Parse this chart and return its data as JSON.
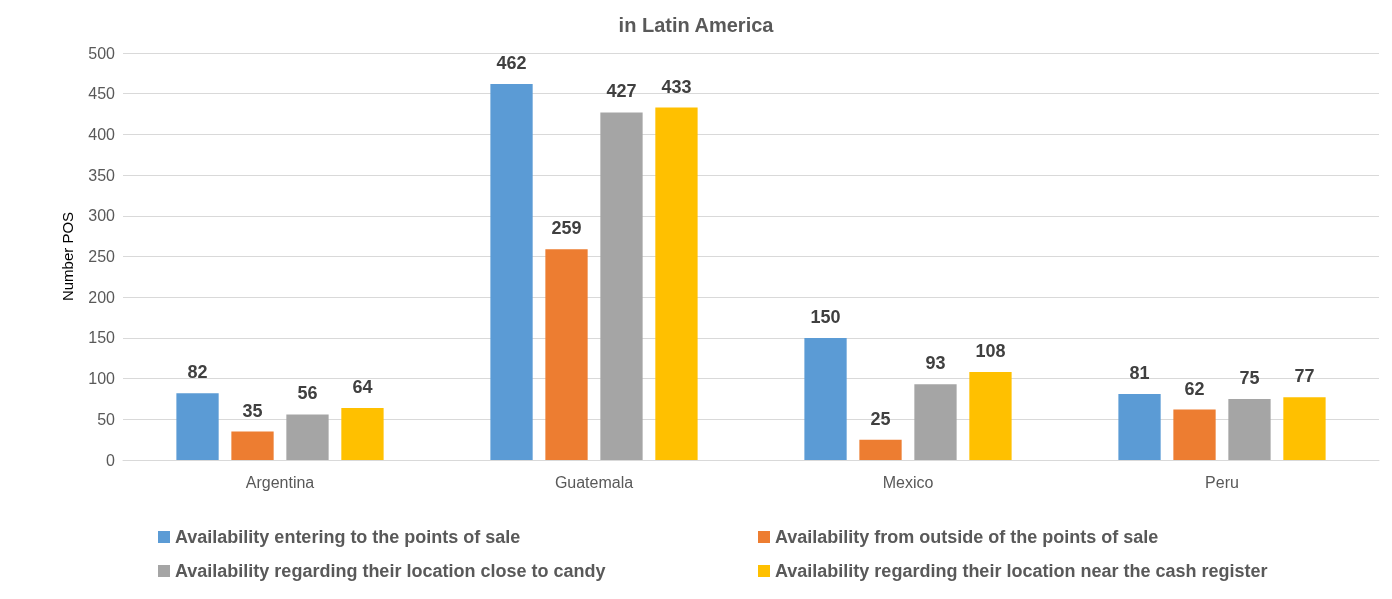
{
  "chart_data": {
    "type": "bar",
    "title": "in Latin America",
    "ylabel": "Number POS",
    "categories": [
      "Argentina",
      "Guatemala",
      "Mexico",
      "Peru"
    ],
    "series": [
      {
        "name": "Availability entering to the points of sale",
        "color": "#5b9bd5",
        "values": [
          82,
          462,
          150,
          81
        ]
      },
      {
        "name": "Availability from outside of the points of sale",
        "color": "#ed7d31",
        "values": [
          35,
          259,
          25,
          62
        ]
      },
      {
        "name": "Availability regarding their location close to candy",
        "color": "#a5a5a5",
        "values": [
          56,
          427,
          93,
          75
        ]
      },
      {
        "name": "Availability regarding their location near the cash register",
        "color": "#ffc000",
        "values": [
          64,
          433,
          108,
          77
        ]
      }
    ],
    "ylim": [
      0,
      500
    ],
    "yticks": [
      0,
      50,
      100,
      150,
      200,
      250,
      300,
      350,
      400,
      450,
      500
    ],
    "grid": "y",
    "legend": "bottom",
    "data_labels": true
  }
}
